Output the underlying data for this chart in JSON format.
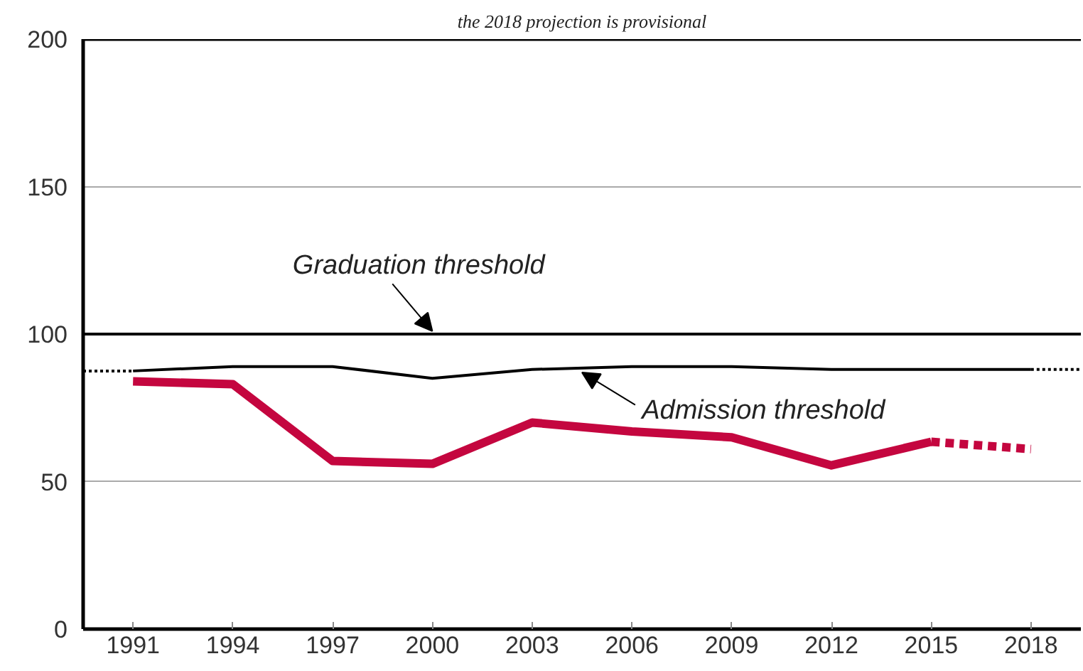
{
  "chart_data": {
    "type": "line",
    "subtitle": "the 2018 projection is provisional",
    "series": [
      {
        "color": "#c4063f",
        "x": [
          1991,
          1994,
          1997,
          2000,
          2003,
          2006,
          2009,
          2012,
          2015
        ],
        "values": [
          84,
          83,
          57,
          56,
          70,
          67,
          65,
          55.5,
          63.5
        ],
        "line_style": "solid"
      },
      {
        "color": "#c4063f",
        "x": [
          2015,
          2018
        ],
        "values": [
          63.5,
          61
        ],
        "line_style": "dashed"
      },
      {
        "color": "#000000",
        "x": [
          1991,
          1994,
          1997,
          2000,
          2003,
          2006,
          2009,
          2012,
          2015,
          2018
        ],
        "values": [
          87.5,
          89,
          89,
          85,
          88,
          89,
          89,
          88,
          88,
          88
        ],
        "line_style": "solid"
      },
      {
        "color": "#000000",
        "x": [
          1989.5,
          1991
        ],
        "values": [
          87.5,
          87.5
        ],
        "line_style": "dotted"
      },
      {
        "color": "#000000",
        "x": [
          2018,
          2019.5
        ],
        "values": [
          88,
          88
        ],
        "line_style": "dotted"
      }
    ],
    "ref_lines": [
      {
        "axis": "y",
        "value": 100,
        "label": "Graduation threshold",
        "color": "#000000"
      }
    ],
    "annotations": [
      {
        "text": "Admission threshold",
        "x": 2004.5,
        "y": 89
      }
    ],
    "xlim": [
      1989.5,
      2019.5
    ],
    "ylim": [
      0,
      200
    ],
    "xticks": [
      1991,
      1994,
      1997,
      2000,
      2003,
      2006,
      2009,
      2012,
      2015,
      2018
    ],
    "yticks": [
      0,
      50,
      100,
      150,
      200
    ],
    "grid": "y",
    "marker": "none"
  }
}
